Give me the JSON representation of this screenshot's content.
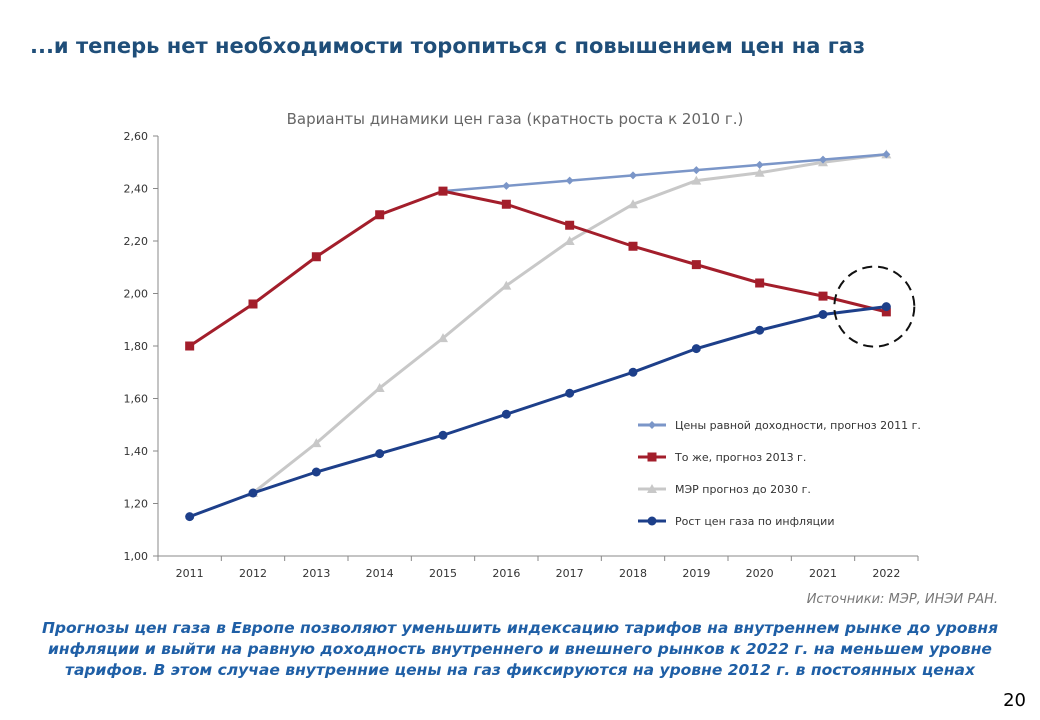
{
  "slide": {
    "title": "...и теперь нет необходимости торопиться с повышением цен на газ",
    "source": "Источники: МЭР, ИНЭИ РАН.",
    "note": "Прогнозы цен газа в Европе позволяют уменьшить индексацию тарифов на внутреннем рынке до уровня инфляции и выйти на равную доходность внутреннего и внешнего рынков к 2022 г. на меньшем уровне тарифов. В этом случае внутренние цены на газ фиксируются на уровне 2012 г. в постоянных ценах",
    "page_number": "20"
  },
  "chart_data": {
    "type": "line",
    "title": "Варианты динамики цен газа (кратность роста к 2010 г.)",
    "xlabel": "",
    "ylabel": "",
    "categories": [
      "2011",
      "2012",
      "2013",
      "2014",
      "2015",
      "2016",
      "2017",
      "2018",
      "2019",
      "2020",
      "2021",
      "2022"
    ],
    "ylim": [
      1.0,
      2.6
    ],
    "yticks": [
      "1,00",
      "1,20",
      "1,40",
      "1,60",
      "1,80",
      "2,00",
      "2,20",
      "2,40",
      "2,60"
    ],
    "grid": false,
    "legend_position": "bottom-right",
    "highlight": "dashed circle around 2022",
    "series": [
      {
        "name": "Цены равной доходности, прогноз 2011 г.",
        "color": "#7b96c8",
        "marker": "diamond",
        "values": [
          null,
          null,
          null,
          null,
          2.39,
          2.41,
          2.43,
          2.45,
          2.47,
          2.49,
          2.51,
          2.53
        ]
      },
      {
        "name": "То же, прогноз 2013 г.",
        "color": "#a31e2b",
        "marker": "square",
        "values": [
          1.8,
          1.96,
          2.14,
          2.3,
          2.39,
          2.34,
          2.26,
          2.18,
          2.11,
          2.04,
          1.99,
          1.93
        ]
      },
      {
        "name": "МЭР прогноз до 2030 г.",
        "color": "#c8c8c8",
        "marker": "triangle",
        "values": [
          null,
          1.24,
          1.43,
          1.64,
          1.83,
          2.03,
          2.2,
          2.34,
          2.43,
          2.46,
          2.5,
          2.53
        ]
      },
      {
        "name": "Рост цен газа по инфляции",
        "color": "#1d3f8a",
        "marker": "circle",
        "values": [
          1.15,
          1.24,
          1.32,
          1.39,
          1.46,
          1.54,
          1.62,
          1.7,
          1.79,
          1.86,
          1.92,
          1.95
        ]
      }
    ]
  }
}
